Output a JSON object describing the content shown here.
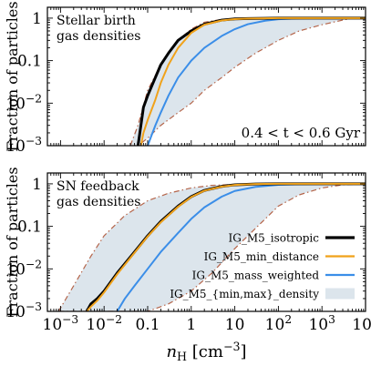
{
  "chart_data": [
    {
      "type": "line",
      "panel": "top",
      "annotation_lines": [
        "Stellar birth",
        "gas densities"
      ],
      "time_label": "0.4 < t < 0.6 Gyr",
      "ylabel": "Fraction of particles",
      "xlabel": "",
      "x_scale": "log",
      "y_scale": "log",
      "xlim": [
        0.0005,
        10000
      ],
      "ylim": [
        0.001,
        1.8
      ],
      "grid": false,
      "x_ticks": [
        0.001,
        0.01,
        0.1,
        1,
        10,
        100,
        1000,
        10000
      ],
      "y_ticks": [
        0.001,
        0.01,
        0.1,
        1
      ],
      "y_tick_labels": [
        "10^-3",
        "10^-2",
        "0.1",
        "1"
      ],
      "band": {
        "name": "IG_M5_{min,max}_density",
        "color": "#dce5ec",
        "edge_color": "#b5654a",
        "x": [
          0.04,
          0.06,
          0.1,
          0.2,
          0.5,
          1,
          2,
          5,
          10,
          30,
          100,
          300,
          1000,
          3000,
          5000,
          10000
        ],
        "lower": [
          0.001,
          0.001,
          0.0015,
          0.003,
          0.006,
          0.01,
          0.02,
          0.04,
          0.07,
          0.15,
          0.3,
          0.5,
          0.7,
          0.9,
          1.0,
          1.0
        ],
        "upper": [
          0.001,
          0.003,
          0.02,
          0.08,
          0.3,
          0.55,
          0.8,
          0.93,
          0.98,
          1.0,
          1.0,
          1.0,
          1.0,
          1.0,
          1.0,
          1.0
        ]
      },
      "series": [
        {
          "name": "IG_M5_isotropic",
          "color": "#000000",
          "x": [
            0.06,
            0.07,
            0.08,
            0.1,
            0.15,
            0.2,
            0.3,
            0.5,
            1,
            2,
            5,
            10,
            20,
            50,
            100,
            1000,
            10000
          ],
          "y": [
            0.001,
            0.003,
            0.008,
            0.015,
            0.04,
            0.08,
            0.15,
            0.3,
            0.5,
            0.72,
            0.9,
            0.96,
            0.98,
            0.99,
            1.0,
            1.0,
            1.0
          ]
        },
        {
          "name": "IG_M5_min_distance",
          "color": "#f0a21a",
          "x": [
            0.07,
            0.08,
            0.1,
            0.15,
            0.2,
            0.3,
            0.5,
            1,
            2,
            5,
            10,
            20,
            50,
            100,
            1000,
            10000
          ],
          "y": [
            0.001,
            0.002,
            0.004,
            0.012,
            0.03,
            0.08,
            0.2,
            0.45,
            0.7,
            0.88,
            0.95,
            0.98,
            0.99,
            1.0,
            1.0,
            1.0
          ]
        },
        {
          "name": "IG_M5_mass_weighted",
          "color": "#3b8ee8",
          "x": [
            0.1,
            0.15,
            0.2,
            0.3,
            0.5,
            1,
            2,
            5,
            10,
            20,
            50,
            100,
            300,
            1000,
            10000
          ],
          "y": [
            0.001,
            0.003,
            0.006,
            0.015,
            0.04,
            0.1,
            0.2,
            0.38,
            0.55,
            0.72,
            0.87,
            0.94,
            0.99,
            1.0,
            1.0
          ]
        }
      ]
    },
    {
      "type": "line",
      "panel": "bottom",
      "annotation_lines": [
        "SN feedback",
        "gas densities"
      ],
      "ylabel": "Fraction of particles",
      "xlabel": "n_H [cm^-3]",
      "x_scale": "log",
      "y_scale": "log",
      "xlim": [
        0.0005,
        10000
      ],
      "ylim": [
        0.001,
        1.8
      ],
      "grid": false,
      "x_ticks": [
        0.001,
        0.01,
        0.1,
        1,
        10,
        100,
        1000,
        10000
      ],
      "x_tick_labels": [
        "10^-3",
        "10^-2",
        "0.1",
        "1",
        "10",
        "10^2",
        "10^3",
        "10^4"
      ],
      "y_ticks": [
        0.001,
        0.01,
        0.1,
        1
      ],
      "y_tick_labels": [
        "10^-3",
        "10^-2",
        "0.1",
        "1"
      ],
      "band": {
        "name": "IG_M5_{min,max}_density",
        "color": "#dce5ec",
        "edge_color": "#b5654a",
        "x": [
          0.0009,
          0.002,
          0.005,
          0.01,
          0.03,
          0.1,
          0.3,
          1,
          3,
          10,
          30,
          100,
          300,
          1000,
          3000,
          10000
        ],
        "lower": [
          0.001,
          0.001,
          0.001,
          0.001,
          0.001,
          0.001,
          0.0015,
          0.003,
          0.008,
          0.03,
          0.09,
          0.3,
          0.55,
          0.8,
          0.95,
          1.0
        ],
        "upper": [
          0.001,
          0.004,
          0.02,
          0.06,
          0.18,
          0.4,
          0.6,
          0.8,
          0.92,
          0.97,
          0.99,
          1.0,
          1.0,
          1.0,
          1.0,
          1.0
        ]
      },
      "series": [
        {
          "name": "IG_M5_isotropic",
          "color": "#000000",
          "x": [
            0.004,
            0.005,
            0.007,
            0.01,
            0.02,
            0.05,
            0.1,
            0.2,
            0.5,
            1,
            2,
            5,
            10,
            30,
            100,
            1000,
            10000
          ],
          "y": [
            0.001,
            0.0015,
            0.002,
            0.003,
            0.008,
            0.025,
            0.06,
            0.13,
            0.3,
            0.5,
            0.7,
            0.87,
            0.95,
            0.99,
            1.0,
            1.0,
            1.0
          ]
        },
        {
          "name": "IG_M5_min_distance",
          "color": "#f0a21a",
          "x": [
            0.004,
            0.005,
            0.007,
            0.01,
            0.02,
            0.05,
            0.1,
            0.2,
            0.5,
            1,
            2,
            5,
            10,
            30,
            100,
            1000,
            10000
          ],
          "y": [
            0.001,
            0.0013,
            0.0018,
            0.0028,
            0.0075,
            0.024,
            0.058,
            0.125,
            0.29,
            0.49,
            0.69,
            0.86,
            0.94,
            0.99,
            1.0,
            1.0,
            1.0
          ]
        },
        {
          "name": "IG_M5_mass_weighted",
          "color": "#3b8ee8",
          "x": [
            0.02,
            0.03,
            0.05,
            0.1,
            0.2,
            0.5,
            1,
            2,
            5,
            10,
            30,
            100,
            300,
            1000,
            3000,
            10000
          ],
          "y": [
            0.001,
            0.002,
            0.004,
            0.01,
            0.025,
            0.07,
            0.15,
            0.28,
            0.5,
            0.68,
            0.85,
            0.95,
            0.98,
            1.0,
            1.0,
            1.0
          ]
        }
      ]
    }
  ]
}
